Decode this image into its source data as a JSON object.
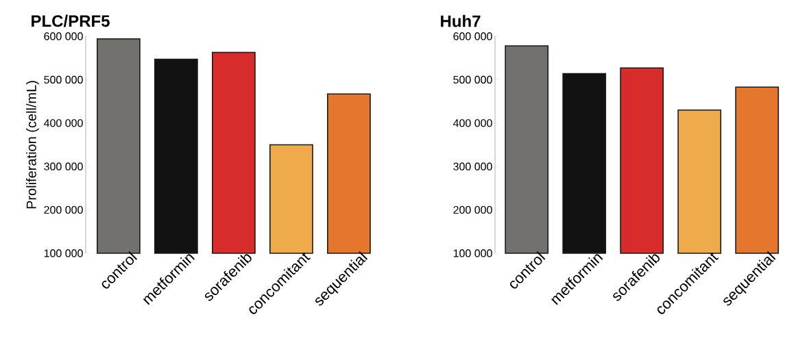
{
  "chart_data": [
    {
      "type": "bar",
      "title": "**PLC/PRF5**",
      "ylabel": "Proliferation (cell/mL)",
      "categories": [
        "control",
        "metformin",
        "sorafenib",
        "concomitant",
        "sequential"
      ],
      "values": [
        594000,
        547000,
        563000,
        350000,
        467000
      ],
      "colors": [
        "#72716d",
        "#111211",
        "#d82c2c",
        "#efaa4b",
        "#e4762d"
      ],
      "ylim": [
        100000,
        600000
      ],
      "yticks": [
        {
          "value": 100000,
          "label": "100 000"
        },
        {
          "value": 200000,
          "label": "200 000"
        },
        {
          "value": 300000,
          "label": "300 000"
        },
        {
          "value": 400000,
          "label": "400 000"
        },
        {
          "value": 500000,
          "label": "500 000"
        },
        {
          "value": 600000,
          "label": "600 000"
        }
      ]
    },
    {
      "type": "bar",
      "title": "**Huh7**",
      "categories": [
        "control",
        "metformin",
        "sorafenib",
        "concomitant",
        "sequential"
      ],
      "values": [
        578000,
        514000,
        527000,
        430000,
        483000
      ],
      "colors": [
        "#72716d",
        "#111211",
        "#d82c2c",
        "#efaa4b",
        "#e4762d"
      ],
      "ylim": [
        100000,
        600000
      ],
      "yticks": [
        {
          "value": 100000,
          "label": "100 000"
        },
        {
          "value": 200000,
          "label": "200 000"
        },
        {
          "value": 300000,
          "label": "300 000"
        },
        {
          "value": 400000,
          "label": "400 000"
        },
        {
          "value": 500000,
          "label": "500 000"
        },
        {
          "value": 600000,
          "label": "600 000"
        }
      ]
    }
  ]
}
